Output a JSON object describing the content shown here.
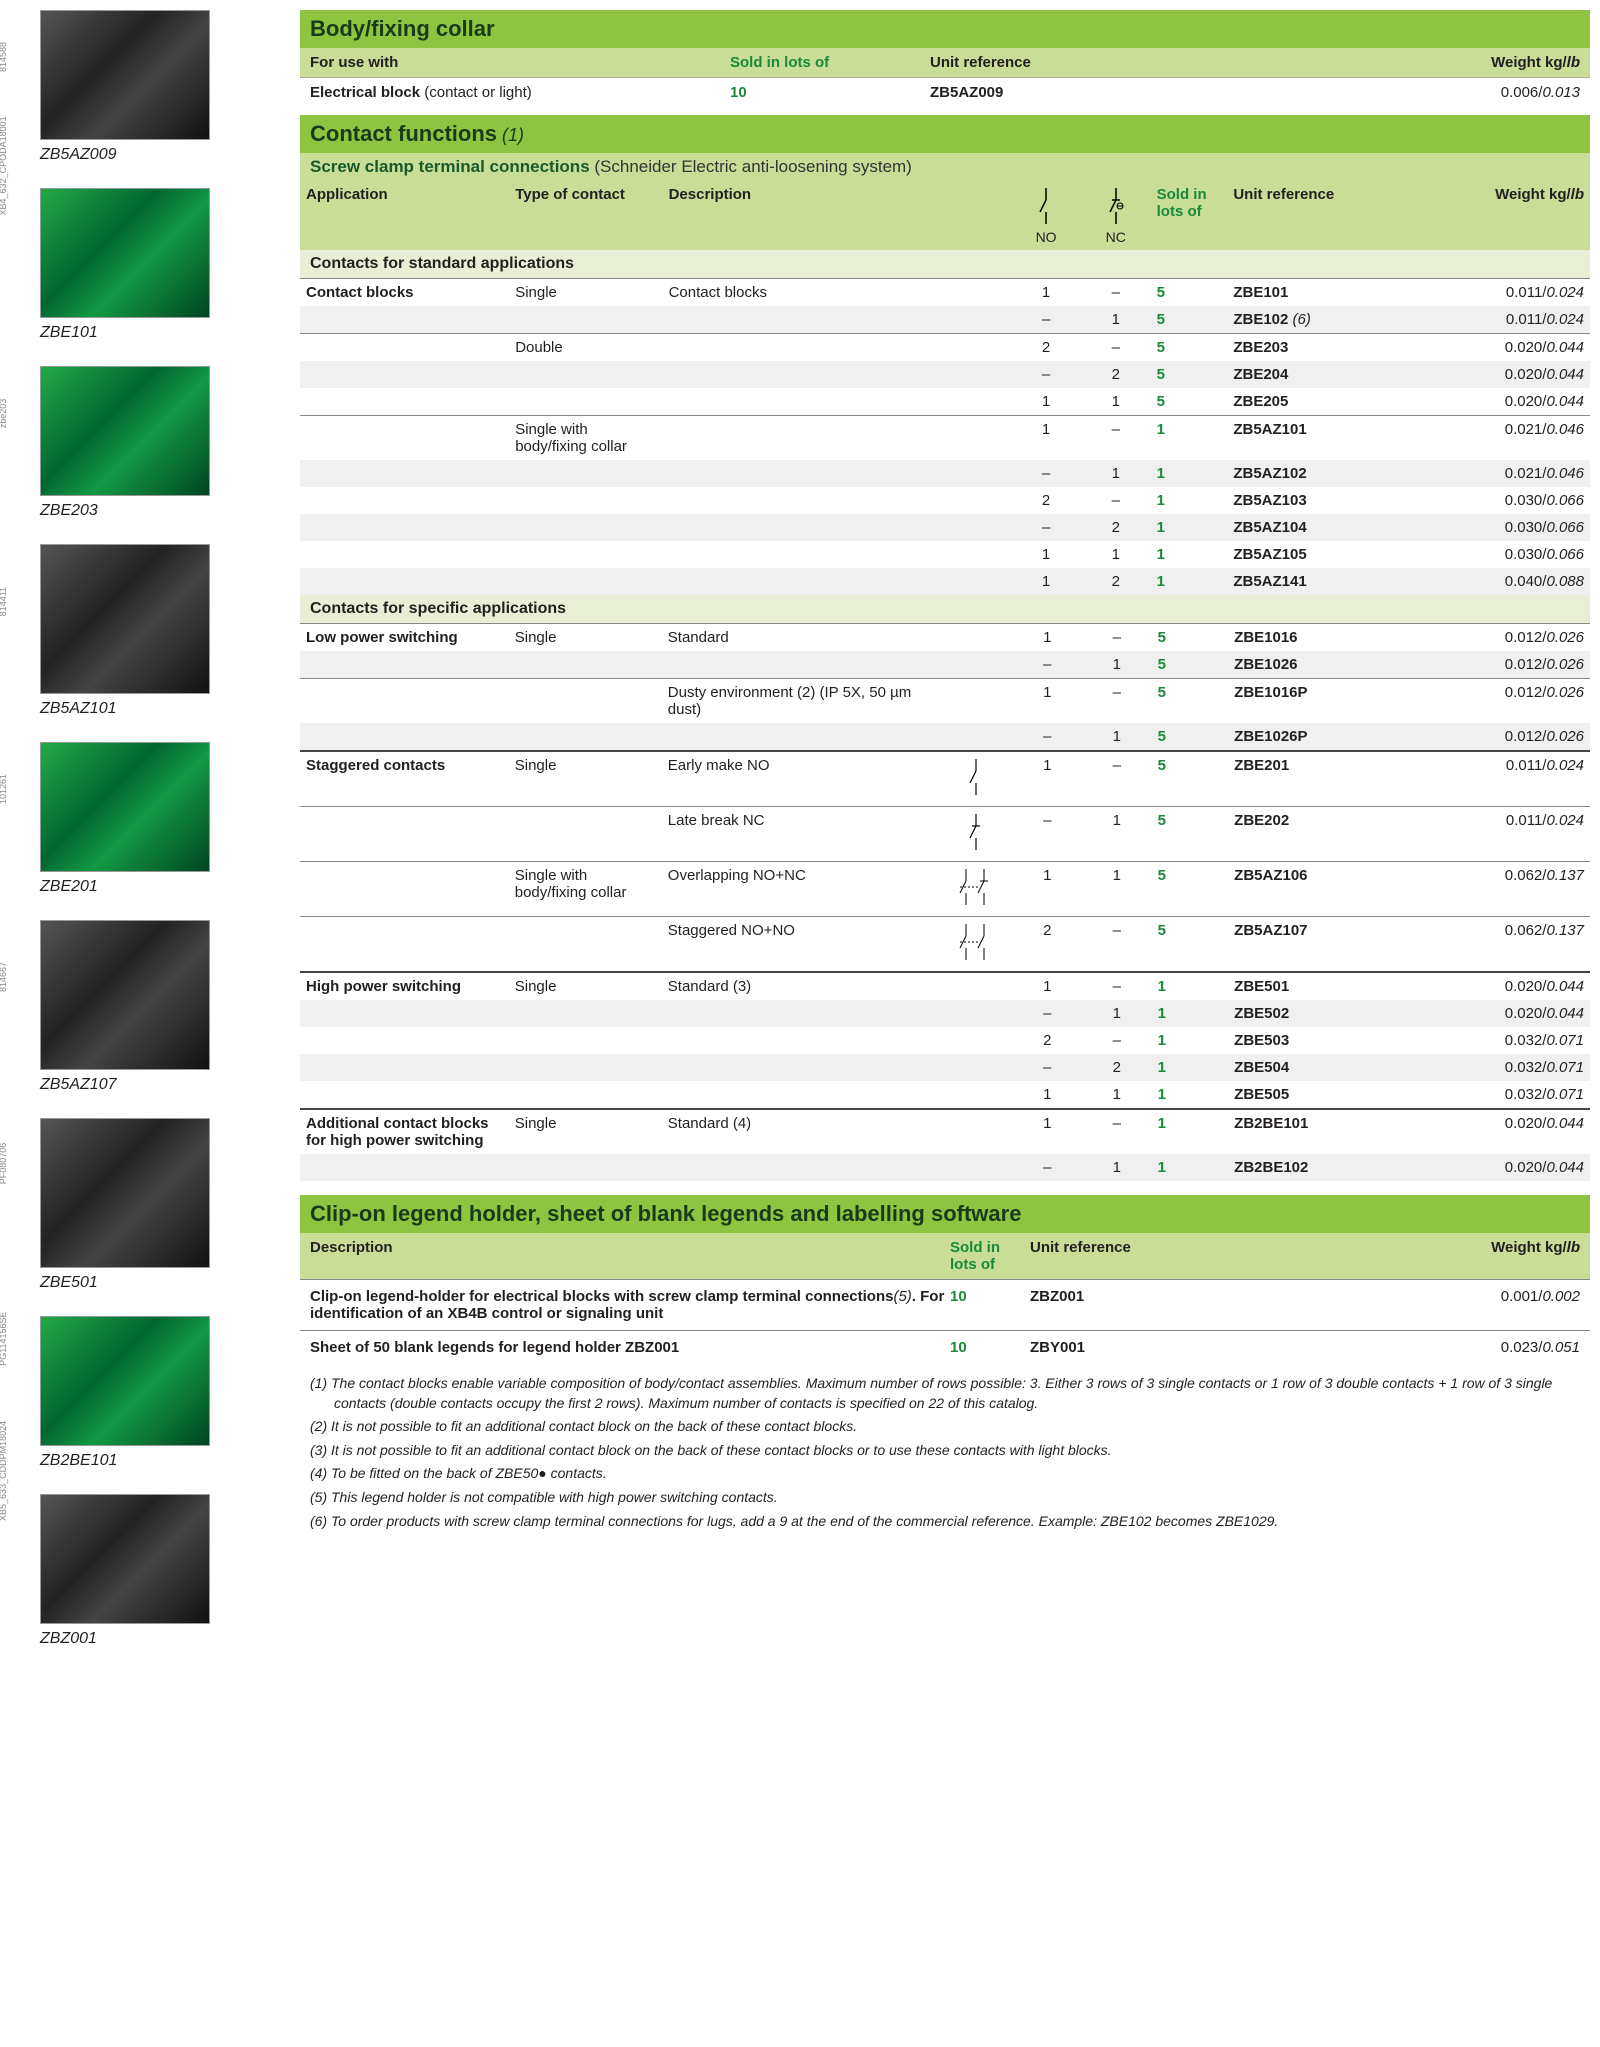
{
  "sidebar": [
    {
      "rot": "814588",
      "label": "ZB5AZ009",
      "style": ""
    },
    {
      "rot": "XB4_632_CPODA18001",
      "label": "ZBE101",
      "style": "green"
    },
    {
      "rot": "zbe203",
      "label": "ZBE203",
      "style": "green"
    },
    {
      "rot": "814411",
      "label": "ZB5AZ101",
      "style": "tall"
    },
    {
      "rot": "101261",
      "label": "ZBE201",
      "style": "green"
    },
    {
      "rot": "814667",
      "label": "ZB5AZ107",
      "style": "tall"
    },
    {
      "rot": "PF080706",
      "label": "ZBE501",
      "style": "tall"
    },
    {
      "rot": "PG114156SE",
      "label": "ZB2BE101",
      "style": "green"
    },
    {
      "rot": "XB5_633_CDDPM18024",
      "label": "ZBZ001",
      "style": ""
    }
  ],
  "body_fixing": {
    "title": "Body/fixing collar",
    "h1": "For use with",
    "h2": "Sold in lots of",
    "h3": "Unit reference",
    "h4": "Weight kg/",
    "h4i": "lb",
    "row_label": "Electrical block",
    "row_paren": " (contact or light)",
    "lot": "10",
    "ref": "ZB5AZ009",
    "wt_kg": "0.006/",
    "wt_lb": "0.013"
  },
  "contact_functions": {
    "title": "Contact functions",
    "title_note": " (1)",
    "subtitle": "Screw clamp terminal connections",
    "subtitle_paren": " (Schneider Electric anti-loosening system)",
    "hdr": {
      "app": "Application",
      "type": "Type of contact",
      "desc": "Description",
      "no": "NO",
      "nc": "NC",
      "lot": "Sold in lots of",
      "ref": "Unit reference",
      "wt": "Weight kg/",
      "wt_i": "lb"
    },
    "std_title": "Contacts for standard applications",
    "std_rows": [
      {
        "app": "Contact blocks",
        "type": "Single",
        "desc": "Contact blocks",
        "no": "1",
        "nc": "–",
        "lot": "5",
        "ref": "ZBE101",
        "wt": "0.011/",
        "wtlb": "0.024",
        "sep": true
      },
      {
        "app": "",
        "type": "",
        "desc": "",
        "no": "–",
        "nc": "1",
        "lot": "5",
        "ref": "ZBE102",
        "refnote": " (6)",
        "wt": "0.011/",
        "wtlb": "0.024",
        "alt": true
      },
      {
        "app": "",
        "type": "Double",
        "desc": "",
        "no": "2",
        "nc": "–",
        "lot": "5",
        "ref": "ZBE203",
        "wt": "0.020/",
        "wtlb": "0.044",
        "sep": true
      },
      {
        "app": "",
        "type": "",
        "desc": "",
        "no": "–",
        "nc": "2",
        "lot": "5",
        "ref": "ZBE204",
        "wt": "0.020/",
        "wtlb": "0.044",
        "alt": true
      },
      {
        "app": "",
        "type": "",
        "desc": "",
        "no": "1",
        "nc": "1",
        "lot": "5",
        "ref": "ZBE205",
        "wt": "0.020/",
        "wtlb": "0.044"
      },
      {
        "app": "",
        "type": "Single with body/fixing collar",
        "desc": "",
        "no": "1",
        "nc": "–",
        "lot": "1",
        "ref": "ZB5AZ101",
        "wt": "0.021/",
        "wtlb": "0.046",
        "sep": true
      },
      {
        "app": "",
        "type": "",
        "desc": "",
        "no": "–",
        "nc": "1",
        "lot": "1",
        "ref": "ZB5AZ102",
        "wt": "0.021/",
        "wtlb": "0.046",
        "alt": true
      },
      {
        "app": "",
        "type": "",
        "desc": "",
        "no": "2",
        "nc": "–",
        "lot": "1",
        "ref": "ZB5AZ103",
        "wt": "0.030/",
        "wtlb": "0.066"
      },
      {
        "app": "",
        "type": "",
        "desc": "",
        "no": "–",
        "nc": "2",
        "lot": "1",
        "ref": "ZB5AZ104",
        "wt": "0.030/",
        "wtlb": "0.066",
        "alt": true
      },
      {
        "app": "",
        "type": "",
        "desc": "",
        "no": "1",
        "nc": "1",
        "lot": "1",
        "ref": "ZB5AZ105",
        "wt": "0.030/",
        "wtlb": "0.066"
      },
      {
        "app": "",
        "type": "",
        "desc": "",
        "no": "1",
        "nc": "2",
        "lot": "1",
        "ref": "ZB5AZ141",
        "wt": "0.040/",
        "wtlb": "0.088",
        "alt": true
      }
    ],
    "spec_title": "Contacts for specific applications",
    "spec_rows": [
      {
        "app": "Low power switching",
        "type": "Single",
        "desc": "Standard",
        "no": "1",
        "nc": "–",
        "lot": "5",
        "ref": "ZBE1016",
        "wt": "0.012/",
        "wtlb": "0.026",
        "sep": true
      },
      {
        "app": "",
        "type": "",
        "desc": "",
        "no": "–",
        "nc": "1",
        "lot": "5",
        "ref": "ZBE1026",
        "wt": "0.012/",
        "wtlb": "0.026",
        "alt": true
      },
      {
        "app": "",
        "type": "",
        "desc": "Dusty environment (2) (IP 5X, 50 µm dust)",
        "no": "1",
        "nc": "–",
        "lot": "5",
        "ref": "ZBE1016P",
        "wt": "0.012/",
        "wtlb": "0.026",
        "sep": true
      },
      {
        "app": "",
        "type": "",
        "desc": "",
        "no": "–",
        "nc": "1",
        "lot": "5",
        "ref": "ZBE1026P",
        "wt": "0.012/",
        "wtlb": "0.026",
        "alt": true
      },
      {
        "app": "Staggered contacts",
        "type": "Single",
        "desc": "Early make NO",
        "sym": "no",
        "no": "1",
        "nc": "–",
        "lot": "5",
        "ref": "ZBE201",
        "wt": "0.011/",
        "wtlb": "0.024",
        "sep": true,
        "tallsep": true
      },
      {
        "app": "",
        "type": "",
        "desc": "Late break NC",
        "sym": "nc",
        "no": "–",
        "nc": "1",
        "lot": "5",
        "ref": "ZBE202",
        "wt": "0.011/",
        "wtlb": "0.024",
        "sep": true
      },
      {
        "app": "",
        "type": "Single with body/fixing collar",
        "desc": "Overlapping NO+NC",
        "sym": "nonc",
        "no": "1",
        "nc": "1",
        "lot": "5",
        "ref": "ZB5AZ106",
        "wt": "0.062/",
        "wtlb": "0.137",
        "sep": true
      },
      {
        "app": "",
        "type": "",
        "desc": "Staggered NO+NO",
        "sym": "nono",
        "no": "2",
        "nc": "–",
        "lot": "5",
        "ref": "ZB5AZ107",
        "wt": "0.062/",
        "wtlb": "0.137",
        "sep": true
      },
      {
        "app": "High power switching",
        "type": "Single",
        "desc": "Standard (3)",
        "no": "1",
        "nc": "–",
        "lot": "1",
        "ref": "ZBE501",
        "wt": "0.020/",
        "wtlb": "0.044",
        "sep": true,
        "tallsep": true
      },
      {
        "app": "",
        "type": "",
        "desc": "",
        "no": "–",
        "nc": "1",
        "lot": "1",
        "ref": "ZBE502",
        "wt": "0.020/",
        "wtlb": "0.044",
        "alt": true
      },
      {
        "app": "",
        "type": "",
        "desc": "",
        "no": "2",
        "nc": "–",
        "lot": "1",
        "ref": "ZBE503",
        "wt": "0.032/",
        "wtlb": "0.071"
      },
      {
        "app": "",
        "type": "",
        "desc": "",
        "no": "–",
        "nc": "2",
        "lot": "1",
        "ref": "ZBE504",
        "wt": "0.032/",
        "wtlb": "0.071",
        "alt": true
      },
      {
        "app": "",
        "type": "",
        "desc": "",
        "no": "1",
        "nc": "1",
        "lot": "1",
        "ref": "ZBE505",
        "wt": "0.032/",
        "wtlb": "0.071"
      },
      {
        "app": "Additional contact blocks for high power switching",
        "type": "Single",
        "desc": "Standard (4)",
        "no": "1",
        "nc": "–",
        "lot": "1",
        "ref": "ZB2BE101",
        "wt": "0.020/",
        "wtlb": "0.044",
        "sep": true,
        "tallsep": true
      },
      {
        "app": "",
        "type": "",
        "desc": "",
        "no": "–",
        "nc": "1",
        "lot": "1",
        "ref": "ZB2BE102",
        "wt": "0.020/",
        "wtlb": "0.044",
        "alt": true
      }
    ]
  },
  "clip": {
    "title": "Clip-on legend holder, sheet of blank legends and labelling software",
    "h1": "Description",
    "h2": "Sold in lots of",
    "h3": "Unit reference",
    "h4": "Weight kg/",
    "h4i": "lb",
    "rows": [
      {
        "desc": "Clip-on legend-holder for electrical blocks with screw clamp terminal connections",
        "descnote": "(5)",
        "desc2": ". For identification of an XB4B control or signaling unit",
        "lot": "10",
        "ref": "ZBZ001",
        "wt": "0.001/",
        "wtlb": "0.002"
      },
      {
        "desc": "Sheet of 50 blank legends for legend holder ZBZ001",
        "lot": "10",
        "ref": "ZBY001",
        "wt": "0.023/",
        "wtlb": "0.051"
      }
    ]
  },
  "footnotes": [
    "(1) The contact blocks enable variable composition of body/contact assemblies. Maximum number of rows possible: 3. Either 3 rows of 3 single contacts or 1 row of 3 double contacts + 1 row of 3 single contacts (double contacts occupy the first 2 rows). Maximum number of contacts is specified on 22 of this catalog.",
    "(2) It is not possible to fit an additional contact block on the back of these contact blocks.",
    "(3) It is not possible to fit an additional contact block on the back of these contact blocks or to use these contacts with light blocks.",
    "(4) To be fitted on the back of ZBE50● contacts.",
    "(5) This legend holder is not compatible with high power switching contacts.",
    "(6) To order products with screw clamp terminal connections for lugs, add a 9 at the end of the commercial reference. Example: ZBE102 becomes ZBE1029."
  ]
}
